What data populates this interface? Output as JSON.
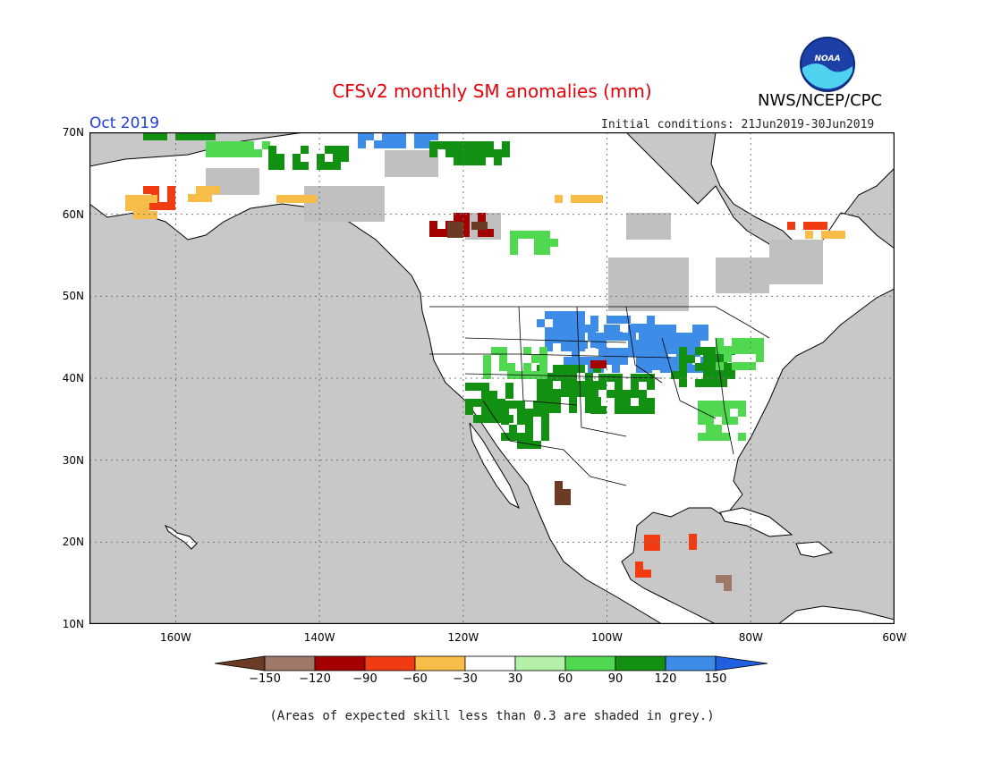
{
  "header": {
    "title": "CFSv2 monthly SM anomalies (mm)",
    "agency": "NWS/NCEP/CPC",
    "period": "Oct 2019",
    "initial_conditions": "Initial conditions: 21Jun2019-30Jun2019",
    "logo_text": "NOAA"
  },
  "map": {
    "lon_range": [
      -172,
      -60
    ],
    "lat_range": [
      10,
      70
    ],
    "lat_ticks": [
      "10N",
      "20N",
      "30N",
      "40N",
      "50N",
      "60N",
      "70N"
    ],
    "lon_ticks": [
      "160W",
      "140W",
      "120W",
      "100W",
      "80W",
      "60W"
    ],
    "colors": {
      "ocean": "#c8c8c8",
      "land": "#ffffff",
      "grey_skill": "#c0c0c0",
      "grid": "#777777"
    }
  },
  "colorbar": {
    "colors": [
      "#6b3b25",
      "#a07868",
      "#a50000",
      "#f03c10",
      "#f8bc48",
      "#ffffff",
      "#b4f0a8",
      "#50d850",
      "#129012",
      "#3c8ce8",
      "#2060e0"
    ],
    "labels": [
      "−150",
      "−120",
      "−90",
      "−60",
      "−30",
      "30",
      "60",
      "90",
      "120",
      "150"
    ]
  },
  "footer": {
    "note": "(Areas of expected skill less than 0.3 are shaded in grey.)"
  }
}
